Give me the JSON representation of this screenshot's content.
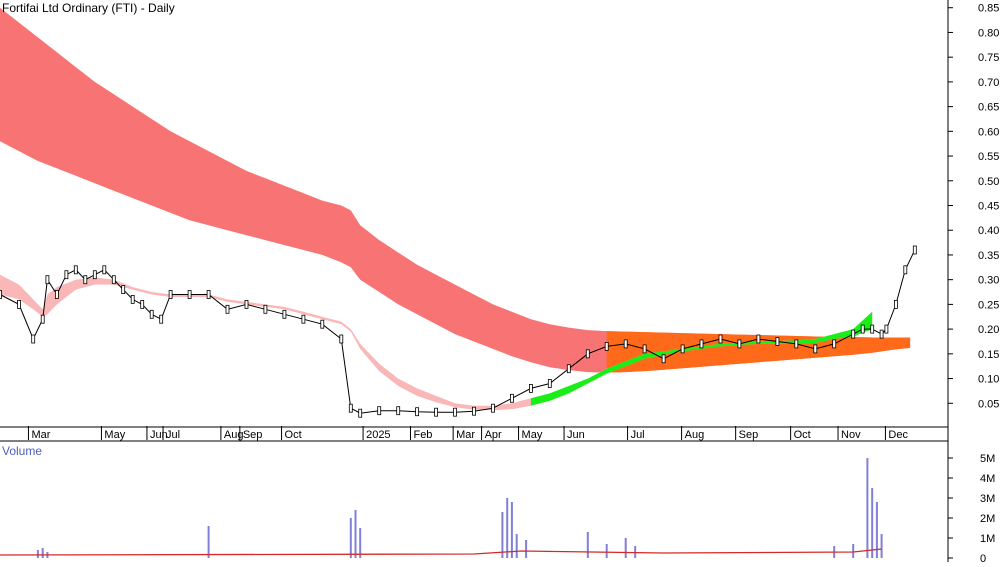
{
  "title": "Fortifai Ltd Ordinary (FTI) - Daily",
  "volume_label": "Volume",
  "colors": {
    "long_band": "#f87474",
    "short_band_down": "#f9b7b7",
    "short_band_up": "#19ee19",
    "long_band_up": "#ff6a1a",
    "volume_bar": "#8080d8",
    "volume_avg": "#d62828",
    "axis": "#000000",
    "grid_tick": "#000000"
  },
  "chart_data": [
    {
      "type": "line",
      "title": "Fortifai Ltd Ordinary (FTI) - Daily",
      "ylim": [
        0.0,
        0.9
      ],
      "y_ticks": [
        0.05,
        0.1,
        0.15,
        0.2,
        0.25,
        0.3,
        0.35,
        0.4,
        0.45,
        0.5,
        0.55,
        0.6,
        0.65,
        0.7,
        0.75,
        0.8,
        0.85
      ],
      "y_tick_labels": [
        "0.05",
        "0.10",
        "0.15",
        "0.20",
        "0.25",
        "0.30",
        "0.35",
        "0.40",
        "0.45",
        "0.50",
        "0.55",
        "0.60",
        "0.65",
        "0.70",
        "0.75",
        "0.80",
        "0.85"
      ],
      "x_labels": [
        "Mar",
        "May",
        "Jun",
        "Jul",
        "Aug",
        "Sep",
        "Oct",
        "2025",
        "Feb",
        "Mar",
        "Apr",
        "May",
        "Jun",
        "Jul",
        "Aug",
        "Sep",
        "Oct",
        "Nov",
        "Dec"
      ],
      "x_label_pos": [
        0.03,
        0.107,
        0.155,
        0.172,
        0.233,
        0.253,
        0.297,
        0.383,
        0.433,
        0.478,
        0.508,
        0.547,
        0.595,
        0.662,
        0.719,
        0.776,
        0.834,
        0.884,
        0.934
      ],
      "series": [
        {
          "kind": "price",
          "t": [
            0.0,
            0.02,
            0.035,
            0.045,
            0.05,
            0.06,
            0.07,
            0.08,
            0.09,
            0.1,
            0.11,
            0.12,
            0.13,
            0.14,
            0.15,
            0.16,
            0.17,
            0.18,
            0.2,
            0.22,
            0.24,
            0.26,
            0.28,
            0.3,
            0.32,
            0.34,
            0.36,
            0.37,
            0.38,
            0.4,
            0.42,
            0.44,
            0.46,
            0.48,
            0.5,
            0.52,
            0.54,
            0.56,
            0.58,
            0.6,
            0.62,
            0.64,
            0.66,
            0.68,
            0.7,
            0.72,
            0.74,
            0.76,
            0.78,
            0.8,
            0.82,
            0.84,
            0.86,
            0.88,
            0.9,
            0.91,
            0.92,
            0.93,
            0.935,
            0.945,
            0.955,
            0.965
          ],
          "y": [
            0.27,
            0.25,
            0.18,
            0.22,
            0.3,
            0.27,
            0.31,
            0.32,
            0.3,
            0.31,
            0.32,
            0.3,
            0.28,
            0.26,
            0.25,
            0.23,
            0.22,
            0.27,
            0.27,
            0.27,
            0.24,
            0.25,
            0.24,
            0.23,
            0.22,
            0.21,
            0.18,
            0.04,
            0.03,
            0.035,
            0.035,
            0.033,
            0.032,
            0.032,
            0.034,
            0.04,
            0.06,
            0.08,
            0.09,
            0.12,
            0.15,
            0.165,
            0.17,
            0.16,
            0.14,
            0.16,
            0.17,
            0.18,
            0.17,
            0.18,
            0.175,
            0.17,
            0.16,
            0.17,
            0.19,
            0.2,
            0.2,
            0.19,
            0.2,
            0.25,
            0.32,
            0.36
          ]
        },
        {
          "kind": "long_band",
          "t": [
            0.0,
            0.02,
            0.04,
            0.06,
            0.08,
            0.1,
            0.12,
            0.14,
            0.16,
            0.18,
            0.2,
            0.22,
            0.24,
            0.26,
            0.28,
            0.3,
            0.32,
            0.34,
            0.36,
            0.37,
            0.38,
            0.4,
            0.42,
            0.44,
            0.46,
            0.48,
            0.5,
            0.52,
            0.54,
            0.56,
            0.58,
            0.6,
            0.62,
            0.64,
            0.66,
            0.68,
            0.7,
            0.72,
            0.74,
            0.76,
            0.78,
            0.8,
            0.82,
            0.84,
            0.86,
            0.88,
            0.9,
            0.92,
            0.94,
            0.96
          ],
          "upper": [
            0.85,
            0.82,
            0.79,
            0.76,
            0.73,
            0.7,
            0.675,
            0.65,
            0.625,
            0.6,
            0.58,
            0.56,
            0.54,
            0.52,
            0.505,
            0.49,
            0.475,
            0.46,
            0.45,
            0.44,
            0.41,
            0.38,
            0.355,
            0.33,
            0.31,
            0.29,
            0.27,
            0.25,
            0.235,
            0.22,
            0.21,
            0.203,
            0.198,
            0.196,
            0.195,
            0.194,
            0.193,
            0.192,
            0.191,
            0.19,
            0.189,
            0.188,
            0.187,
            0.186,
            0.185,
            0.184,
            0.184,
            0.183,
            0.183,
            0.183
          ],
          "lower": [
            0.58,
            0.56,
            0.54,
            0.525,
            0.51,
            0.495,
            0.48,
            0.465,
            0.45,
            0.435,
            0.42,
            0.41,
            0.4,
            0.39,
            0.38,
            0.37,
            0.36,
            0.35,
            0.335,
            0.325,
            0.3,
            0.275,
            0.25,
            0.23,
            0.21,
            0.19,
            0.175,
            0.16,
            0.145,
            0.133,
            0.123,
            0.117,
            0.113,
            0.112,
            0.113,
            0.115,
            0.118,
            0.121,
            0.124,
            0.127,
            0.13,
            0.133,
            0.136,
            0.139,
            0.142,
            0.145,
            0.148,
            0.152,
            0.158,
            0.162
          ]
        },
        {
          "kind": "short_band",
          "t": [
            0.0,
            0.02,
            0.035,
            0.045,
            0.05,
            0.06,
            0.08,
            0.1,
            0.12,
            0.14,
            0.16,
            0.18,
            0.2,
            0.22,
            0.24,
            0.26,
            0.28,
            0.3,
            0.32,
            0.34,
            0.36,
            0.37,
            0.38,
            0.4,
            0.42,
            0.44,
            0.46,
            0.48,
            0.5,
            0.52,
            0.54,
            0.56,
            0.58,
            0.6,
            0.62,
            0.64,
            0.66,
            0.68,
            0.7,
            0.72,
            0.74,
            0.76,
            0.78,
            0.8,
            0.82,
            0.84,
            0.86,
            0.88,
            0.9,
            0.92
          ],
          "upper": [
            0.31,
            0.29,
            0.26,
            0.24,
            0.27,
            0.285,
            0.3,
            0.305,
            0.3,
            0.285,
            0.275,
            0.27,
            0.27,
            0.27,
            0.26,
            0.255,
            0.25,
            0.245,
            0.235,
            0.225,
            0.215,
            0.2,
            0.17,
            0.13,
            0.1,
            0.08,
            0.065,
            0.05,
            0.045,
            0.045,
            0.05,
            0.06,
            0.07,
            0.085,
            0.1,
            0.12,
            0.135,
            0.15,
            0.155,
            0.16,
            0.165,
            0.17,
            0.172,
            0.175,
            0.176,
            0.177,
            0.18,
            0.19,
            0.2,
            0.235
          ],
          "lower": [
            0.27,
            0.26,
            0.24,
            0.225,
            0.23,
            0.25,
            0.28,
            0.29,
            0.29,
            0.28,
            0.27,
            0.265,
            0.265,
            0.265,
            0.255,
            0.25,
            0.245,
            0.24,
            0.23,
            0.22,
            0.21,
            0.195,
            0.16,
            0.115,
            0.085,
            0.065,
            0.052,
            0.042,
            0.037,
            0.036,
            0.038,
            0.045,
            0.055,
            0.07,
            0.09,
            0.11,
            0.125,
            0.14,
            0.148,
            0.155,
            0.16,
            0.165,
            0.168,
            0.17,
            0.17,
            0.171,
            0.172,
            0.18,
            0.185,
            0.2
          ]
        }
      ]
    },
    {
      "type": "bar",
      "title": "Volume",
      "ylim": [
        0,
        5500000
      ],
      "y_ticks": [
        0,
        1000000,
        2000000,
        3000000,
        4000000,
        5000000
      ],
      "y_tick_labels": [
        "0",
        "1M",
        "2M",
        "3M",
        "4M",
        "5M"
      ],
      "t": [
        0.04,
        0.045,
        0.05,
        0.22,
        0.37,
        0.375,
        0.38,
        0.53,
        0.535,
        0.54,
        0.545,
        0.555,
        0.62,
        0.64,
        0.66,
        0.67,
        0.88,
        0.9,
        0.915,
        0.92,
        0.925,
        0.93
      ],
      "values": [
        400000,
        500000,
        300000,
        1600000,
        2000000,
        2400000,
        1500000,
        2300000,
        3000000,
        2800000,
        1200000,
        900000,
        1300000,
        700000,
        1000000,
        600000,
        600000,
        700000,
        5000000,
        3500000,
        2800000,
        1200000
      ]
    }
  ]
}
